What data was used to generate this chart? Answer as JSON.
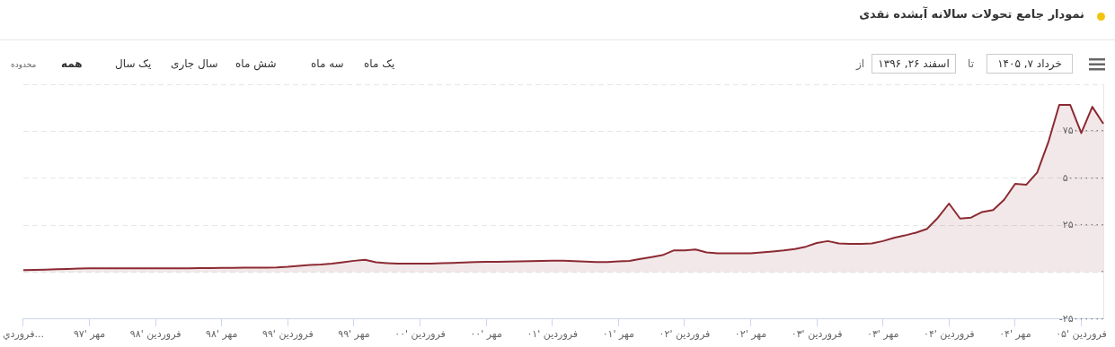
{
  "chart_data": {
    "type": "area",
    "title": "نمودار جامع تحولات سالانه آبشده نقدی",
    "annotations": [
      "محدوده",
      "همه",
      "یک سال",
      "سال جاری",
      "شش ماه",
      "سه ماه",
      "یک ماه",
      "از",
      "اسفند ۲۶, ۱۳۹۶",
      "تا",
      "خرداد ۷, ۱۴۰۵"
    ],
    "color": "#8c2a33",
    "marker": "none",
    "grid": "y",
    "legend": false,
    "categories": [
      "فروردي...",
      null,
      null,
      null,
      null,
      null,
      "مهر '۹۷",
      null,
      null,
      null,
      null,
      null,
      "فروردین '۹۸",
      null,
      null,
      null,
      null,
      null,
      "مهر '۹۸",
      null,
      null,
      null,
      null,
      null,
      "فروردین '۹۹",
      null,
      null,
      null,
      null,
      null,
      "مهر '۹۹",
      null,
      null,
      null,
      null,
      null,
      "فروردین '۰۰",
      null,
      null,
      null,
      null,
      null,
      "مهر '۰۰",
      null,
      null,
      null,
      null,
      null,
      "فروردین '۰۱",
      null,
      null,
      null,
      null,
      null,
      "مهر '۰۱",
      null,
      null,
      null,
      null,
      null,
      "فروردین '۰۲",
      null,
      null,
      null,
      null,
      null,
      "مهر '۰۲",
      null,
      null,
      null,
      null,
      null,
      "فروردین '۰۳",
      null,
      null,
      null,
      null,
      null,
      "مهر '۰۳",
      null,
      null,
      null,
      null,
      null,
      "فروردین '۰۴",
      null,
      null,
      null,
      null,
      null,
      "مهر '۰۴",
      null,
      null,
      null,
      null,
      null,
      "فروردین '۰۵",
      null,
      null
    ],
    "values": [
      1000000,
      1200000,
      1300000,
      1500000,
      1700000,
      1900000,
      2000000,
      2000000,
      2000000,
      2000000,
      2000000,
      2000000,
      2000000,
      2000000,
      2000000,
      2000000,
      2100000,
      2100000,
      2200000,
      2200000,
      2300000,
      2400000,
      2400000,
      2500000,
      2800000,
      3300000,
      3800000,
      4000000,
      4500000,
      5200000,
      6000000,
      6500000,
      5200000,
      4800000,
      4500000,
      4500000,
      4500000,
      4500000,
      4700000,
      4900000,
      5100000,
      5300000,
      5500000,
      5500000,
      5600000,
      5700000,
      5800000,
      5900000,
      6000000,
      6000000,
      5800000,
      5600000,
      5400000,
      5400000,
      5700000,
      5900000,
      7000000,
      8000000,
      9000000,
      11500000,
      11500000,
      12000000,
      10500000,
      10000000,
      10000000,
      10000000,
      10000000,
      10500000,
      11000000,
      11500000,
      12300000,
      13500000,
      15500000,
      16500000,
      15300000,
      15000000,
      15000000,
      15300000,
      16500000,
      18200000,
      19500000,
      21000000,
      23000000,
      29000000,
      36500000,
      28500000,
      29000000,
      32000000,
      33000000,
      38500000,
      47000000,
      46500000,
      53000000,
      69000000,
      89000000,
      89000000,
      74000000,
      88000000,
      79000000
    ],
    "ylim": [
      -25000000,
      100000000
    ],
    "yticks": [
      {
        "value": -25000000,
        "label": "-۲۵۰۰۰۰۰۰"
      },
      {
        "value": 0,
        "label": "۰"
      },
      {
        "value": 25000000,
        "label": "۲۵۰۰۰۰۰۰"
      },
      {
        "value": 50000000,
        "label": "۵۰۰۰۰۰۰۰"
      },
      {
        "value": 75000000,
        "label": "۷۵۰۰۰۰۰۰"
      },
      {
        "value": 100000000,
        "label": null
      }
    ]
  }
}
